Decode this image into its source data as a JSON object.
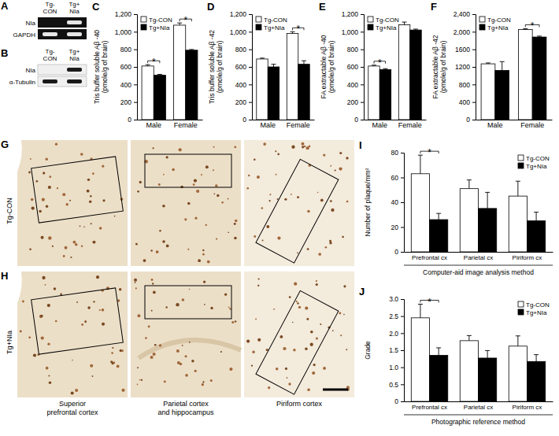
{
  "panel_letters": [
    "A",
    "B",
    "C",
    "D",
    "E",
    "F",
    "G",
    "H",
    "I",
    "J"
  ],
  "gels": [
    {
      "lanes": [
        "Tg-CON",
        "Tg+NIa"
      ],
      "rows": [
        "NIa",
        "GAPDH"
      ]
    },
    {
      "lanes": [
        "Tg-CON",
        "Tg+NIa"
      ],
      "rows": [
        "NIa",
        "α-Tubulin"
      ]
    }
  ],
  "micrographs": {
    "rows": [
      "Tg-CON",
      "Tg+NIa"
    ],
    "columns": [
      "Superior prefrontal cortex",
      "Parietal cortex and hippocampus",
      "Piriform cortex"
    ]
  },
  "chart_data": [
    {
      "type": "bar",
      "y_label": "Tris buffer soluble Aβ -40 (pmole/g of brain)",
      "categories": [
        "Male",
        "Female"
      ],
      "series": [
        {
          "name": "Tg-CON",
          "color": "#ffffff",
          "values": [
            610,
            1075
          ],
          "errors": [
            15,
            25
          ]
        },
        {
          "name": "Tg+NIa",
          "color": "#000000",
          "values": [
            505,
            790
          ],
          "errors": [
            10,
            8
          ]
        }
      ],
      "ylim": [
        0,
        1200
      ],
      "yticks": [
        0,
        200,
        400,
        600,
        800,
        {
          "value": 1000,
          "label": "1,000"
        },
        {
          "value": 1200,
          "label": "1,200"
        }
      ],
      "grid": false,
      "legend": "upper left",
      "annotations": [
        {
          "text": "*",
          "category": "Male"
        },
        {
          "text": "*",
          "category": "Female"
        }
      ]
    },
    {
      "type": "bar",
      "y_label": "Tris buffer soluble Aβ -42 (pmole/g of brain)",
      "categories": [
        "Male",
        "Female"
      ],
      "series": [
        {
          "name": "Tg-CON",
          "color": "#ffffff",
          "values": [
            690,
            980
          ],
          "errors": [
            10,
            20
          ]
        },
        {
          "name": "Tg+NIa",
          "color": "#000000",
          "values": [
            600,
            630
          ],
          "errors": [
            30,
            40
          ]
        }
      ],
      "ylim": [
        0,
        1200
      ],
      "yticks": [
        0,
        200,
        400,
        600,
        800,
        {
          "value": 1000,
          "label": "1,000"
        },
        {
          "value": 1200,
          "label": "1,200"
        }
      ],
      "grid": false,
      "legend": "upper left",
      "annotations": [
        {
          "text": "*",
          "category": "Female"
        }
      ]
    },
    {
      "type": "bar",
      "y_label": "FA extractable Aβ -40 (pmole/g of brain)",
      "categories": [
        "Male",
        "Female"
      ],
      "series": [
        {
          "name": "Tg-CON",
          "color": "#ffffff",
          "values": [
            610,
            1080
          ],
          "errors": [
            10,
            30
          ]
        },
        {
          "name": "Tg+NIa",
          "color": "#000000",
          "values": [
            570,
            1020
          ],
          "errors": [
            10,
            10
          ]
        }
      ],
      "ylim": [
        0,
        1200
      ],
      "yticks": [
        0,
        200,
        400,
        600,
        800,
        {
          "value": 1000,
          "label": "1,000"
        },
        {
          "value": 1200,
          "label": "1,200"
        }
      ],
      "grid": false,
      "legend": "upper left",
      "annotations": [
        {
          "text": "*",
          "category": "Male"
        }
      ]
    },
    {
      "type": "bar",
      "y_label": "FA extractable Aβ -42 (pmole/g of brain)",
      "categories": [
        "Male",
        "Female"
      ],
      "series": [
        {
          "name": "Tg-CON",
          "color": "#ffffff",
          "values": [
            1270,
            2050
          ],
          "errors": [
            20,
            20
          ]
        },
        {
          "name": "Tg+NIa",
          "color": "#000000",
          "values": [
            1120,
            1880
          ],
          "errors": [
            200,
            20
          ]
        }
      ],
      "ylim": [
        0,
        2400
      ],
      "yticks": [
        0,
        400,
        800,
        1200,
        1600,
        {
          "value": 2000,
          "label": "2,000"
        },
        {
          "value": 2400,
          "label": "2,400"
        }
      ],
      "grid": false,
      "legend": "upper left",
      "annotations": [
        {
          "text": "*",
          "category": "Female"
        }
      ]
    },
    {
      "type": "bar",
      "y_label": "Number of plaque/mm²",
      "x_label": "Computer-aid image analysis method",
      "categories": [
        "Prefrontal cx",
        "Parietal cx",
        "Piriform cx"
      ],
      "series": [
        {
          "name": "Tg-CON",
          "color": "#ffffff",
          "values": [
            63,
            51,
            45
          ],
          "errors": [
            15,
            7,
            12
          ]
        },
        {
          "name": "Tg+NIa",
          "color": "#000000",
          "values": [
            26,
            35,
            25
          ],
          "errors": [
            5,
            13,
            7
          ]
        }
      ],
      "ylim": [
        0,
        80
      ],
      "yticks": [
        0,
        20,
        40,
        60,
        80
      ],
      "grid": false,
      "legend": "upper right",
      "annotations": [
        {
          "text": "*",
          "category": "Prefrontal cx"
        }
      ]
    },
    {
      "type": "bar",
      "y_label": "Grade",
      "x_label": "Photographic reference method",
      "categories": [
        "Prefrontal cx",
        "Parietal cx",
        "Piriform cx"
      ],
      "series": [
        {
          "name": "Tg-CON",
          "color": "#ffffff",
          "values": [
            2.45,
            1.78,
            1.62
          ],
          "errors": [
            0.4,
            0.15,
            0.3
          ]
        },
        {
          "name": "Tg+NIa",
          "color": "#000000",
          "values": [
            1.35,
            1.27,
            1.17
          ],
          "errors": [
            0.22,
            0.22,
            0.2
          ]
        }
      ],
      "ylim": [
        0,
        3
      ],
      "yticks": [
        0,
        0.5,
        {
          "value": 1,
          "label": "1.0"
        },
        1.5,
        {
          "value": 2,
          "label": "2.0"
        },
        2.5,
        {
          "value": 3,
          "label": "3.0"
        }
      ],
      "grid": false,
      "legend": "upper right",
      "annotations": [
        {
          "text": "*",
          "category": "Prefrontal cx"
        }
      ]
    }
  ]
}
